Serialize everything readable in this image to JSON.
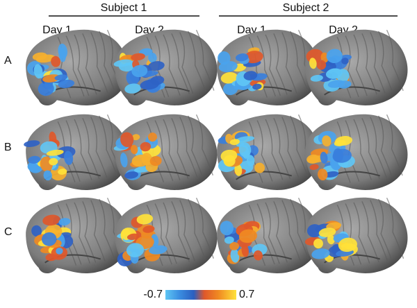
{
  "header": {
    "subjects": [
      {
        "title": "Subject 1",
        "days": [
          "Day 1",
          "Day 2"
        ]
      },
      {
        "title": "Subject 2",
        "days": [
          "Day 1",
          "Day 2"
        ]
      }
    ]
  },
  "rows": [
    "A",
    "B",
    "C"
  ],
  "colorbar": {
    "min": -0.7,
    "max": 0.7
  }
}
